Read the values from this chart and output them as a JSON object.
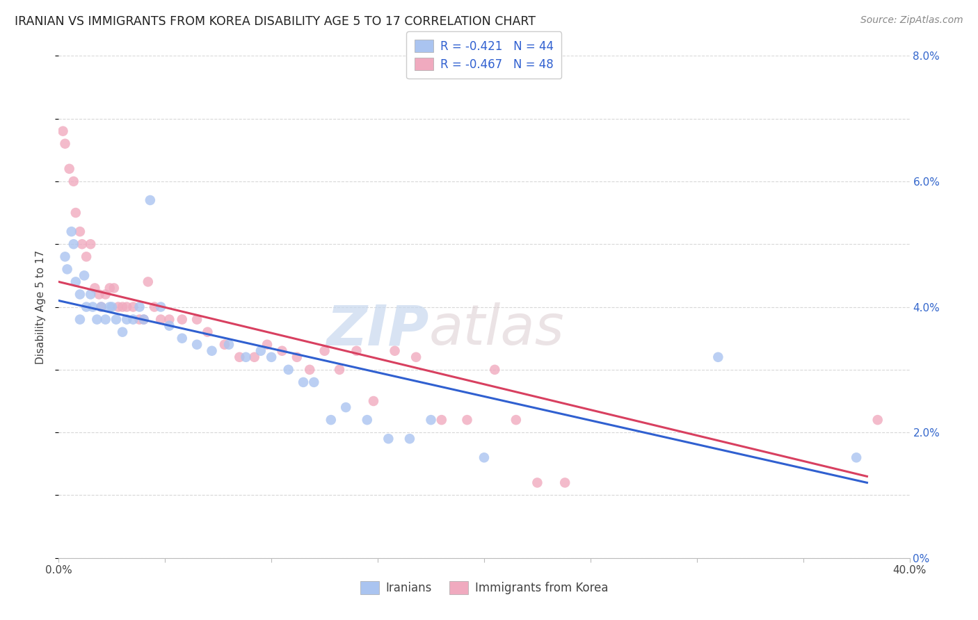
{
  "title": "IRANIAN VS IMMIGRANTS FROM KOREA DISABILITY AGE 5 TO 17 CORRELATION CHART",
  "source": "Source: ZipAtlas.com",
  "ylabel": "Disability Age 5 to 17",
  "xmin": 0.0,
  "xmax": 0.4,
  "ymin": 0.0,
  "ymax": 0.08,
  "xticks": [
    0.0,
    0.05,
    0.1,
    0.15,
    0.2,
    0.25,
    0.3,
    0.35,
    0.4
  ],
  "yticks": [
    0.0,
    0.02,
    0.04,
    0.06,
    0.08
  ],
  "ytick_labels_right": [
    "0%",
    "2.0%",
    "4.0%",
    "6.0%",
    "8.0%"
  ],
  "xtick_labels": [
    "0.0%",
    "",
    "",
    "",
    "",
    "",
    "",
    "",
    "40.0%"
  ],
  "background_color": "#ffffff",
  "grid_color": "#d8d8d8",
  "iranians_color": "#aac4f0",
  "korea_color": "#f0aabf",
  "iranians_line_color": "#3060d0",
  "korea_line_color": "#d84060",
  "iranians_R": -0.421,
  "iranians_N": 44,
  "korea_R": -0.467,
  "korea_N": 48,
  "legend_label_iranians": "Iranians",
  "legend_label_korea": "Immigrants from Korea",
  "iranians_x": [
    0.003,
    0.004,
    0.006,
    0.007,
    0.008,
    0.01,
    0.01,
    0.012,
    0.013,
    0.015,
    0.016,
    0.018,
    0.02,
    0.022,
    0.024,
    0.025,
    0.027,
    0.03,
    0.032,
    0.035,
    0.038,
    0.04,
    0.043,
    0.048,
    0.052,
    0.058,
    0.065,
    0.072,
    0.08,
    0.088,
    0.095,
    0.1,
    0.108,
    0.115,
    0.12,
    0.128,
    0.135,
    0.145,
    0.155,
    0.165,
    0.175,
    0.2,
    0.31,
    0.375
  ],
  "iranians_y": [
    0.048,
    0.046,
    0.052,
    0.05,
    0.044,
    0.042,
    0.038,
    0.045,
    0.04,
    0.042,
    0.04,
    0.038,
    0.04,
    0.038,
    0.04,
    0.04,
    0.038,
    0.036,
    0.038,
    0.038,
    0.04,
    0.038,
    0.057,
    0.04,
    0.037,
    0.035,
    0.034,
    0.033,
    0.034,
    0.032,
    0.033,
    0.032,
    0.03,
    0.028,
    0.028,
    0.022,
    0.024,
    0.022,
    0.019,
    0.019,
    0.022,
    0.016,
    0.032,
    0.016
  ],
  "korea_x": [
    0.002,
    0.003,
    0.005,
    0.007,
    0.008,
    0.01,
    0.011,
    0.013,
    0.015,
    0.017,
    0.019,
    0.02,
    0.022,
    0.024,
    0.026,
    0.028,
    0.03,
    0.032,
    0.035,
    0.038,
    0.04,
    0.042,
    0.045,
    0.048,
    0.052,
    0.058,
    0.065,
    0.07,
    0.078,
    0.085,
    0.092,
    0.098,
    0.105,
    0.112,
    0.118,
    0.125,
    0.132,
    0.14,
    0.148,
    0.158,
    0.168,
    0.18,
    0.192,
    0.205,
    0.215,
    0.225,
    0.238,
    0.385
  ],
  "korea_y": [
    0.068,
    0.066,
    0.062,
    0.06,
    0.055,
    0.052,
    0.05,
    0.048,
    0.05,
    0.043,
    0.042,
    0.04,
    0.042,
    0.043,
    0.043,
    0.04,
    0.04,
    0.04,
    0.04,
    0.038,
    0.038,
    0.044,
    0.04,
    0.038,
    0.038,
    0.038,
    0.038,
    0.036,
    0.034,
    0.032,
    0.032,
    0.034,
    0.033,
    0.032,
    0.03,
    0.033,
    0.03,
    0.033,
    0.025,
    0.033,
    0.032,
    0.022,
    0.022,
    0.03,
    0.022,
    0.012,
    0.012,
    0.022
  ],
  "watermark_zip": "ZIP",
  "watermark_atlas": "atlas",
  "marker_size": 110
}
